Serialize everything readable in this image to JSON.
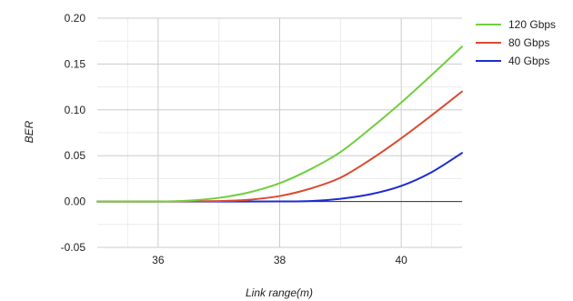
{
  "chart_data": {
    "type": "line",
    "xlabel": "Link range(m)",
    "ylabel": "BER",
    "xlim": [
      35,
      41
    ],
    "ylim": [
      -0.05,
      0.2
    ],
    "x_ticks": [
      36,
      38,
      40
    ],
    "x_tick_labels": [
      "36",
      "38",
      "40"
    ],
    "y_ticks": [
      -0.05,
      0,
      0.05,
      0.1,
      0.15,
      0.2
    ],
    "y_tick_labels": [
      "-0.05",
      "0.00",
      "0.05",
      "0.10",
      "0.15",
      "0.20"
    ],
    "grid": true,
    "minor_grid": true,
    "baseline": 0,
    "legend_position": "top-right",
    "series": [
      {
        "name": "120 Gbps",
        "color": "#6fcf3f",
        "x": [
          35,
          36,
          36.5,
          37,
          37.5,
          38,
          38.5,
          39,
          39.5,
          40,
          40.5,
          41
        ],
        "y": [
          0.0,
          0.0,
          0.001,
          0.004,
          0.01,
          0.02,
          0.035,
          0.054,
          0.08,
          0.108,
          0.138,
          0.169
        ]
      },
      {
        "name": "80 Gbps",
        "color": "#dc4a2e",
        "x": [
          35,
          36,
          37,
          37.5,
          38,
          38.5,
          39,
          39.5,
          40,
          40.5,
          41
        ],
        "y": [
          0.0,
          0.0,
          0.0005,
          0.002,
          0.006,
          0.014,
          0.026,
          0.046,
          0.069,
          0.094,
          0.12
        ]
      },
      {
        "name": "40 Gbps",
        "color": "#1c2bd4",
        "x": [
          35,
          36,
          37,
          38,
          38.5,
          39,
          39.5,
          40,
          40.5,
          41
        ],
        "y": [
          0.0,
          0.0,
          0.0,
          0.0001,
          0.0005,
          0.003,
          0.008,
          0.017,
          0.032,
          0.053
        ]
      }
    ]
  }
}
